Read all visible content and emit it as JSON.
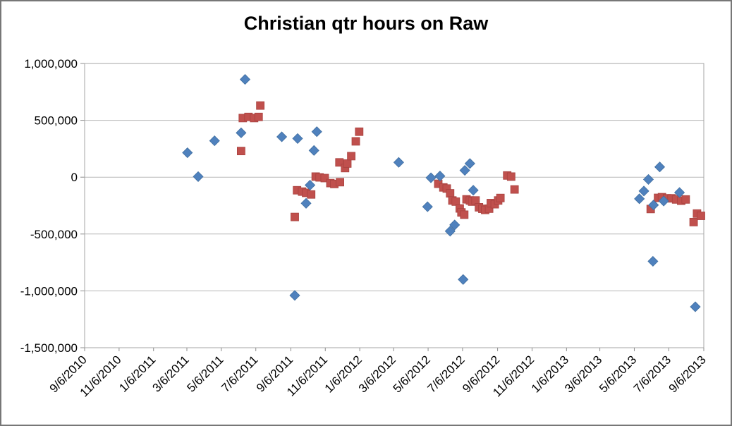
{
  "chart_data": {
    "type": "scatter",
    "title": "Christian qtr hours on Raw",
    "x_axis": {
      "type": "date",
      "start": "9/6/2010",
      "end": "9/6/2013",
      "tick_interval_months": 2,
      "tick_labels": [
        "9/6/2010",
        "11/6/2010",
        "1/6/2011",
        "3/6/2011",
        "5/6/2011",
        "7/6/2011",
        "9/6/2011",
        "11/6/2011",
        "1/6/2012",
        "3/6/2012",
        "5/6/2012",
        "7/6/2012",
        "9/6/2012",
        "11/6/2012",
        "1/6/2013",
        "3/6/2013",
        "5/6/2013",
        "7/6/2013",
        "9/6/2013"
      ]
    },
    "y_axis": {
      "min": -1500000,
      "max": 1000000,
      "tick_step": 500000,
      "ticks": [
        {
          "value": 1000000,
          "label": "1,000,000"
        },
        {
          "value": 500000,
          "label": "500,000"
        },
        {
          "value": 0,
          "label": "0"
        },
        {
          "value": -500000,
          "label": "-500,000"
        },
        {
          "value": -1000000,
          "label": "-1,000,000"
        },
        {
          "value": -1500000,
          "label": "-1,500,000"
        }
      ]
    },
    "grid": "horizontal",
    "legend": "none",
    "series": [
      {
        "marker": "square",
        "color": "#C0504D",
        "points": [
          [
            "6/10/2011",
            230000
          ],
          [
            "6/13/2011",
            520000
          ],
          [
            "6/23/2011",
            530000
          ],
          [
            "7/3/2011",
            520000
          ],
          [
            "7/11/2011",
            530000
          ],
          [
            "7/14/2011",
            630000
          ],
          [
            "9/13/2011",
            -350000
          ],
          [
            "9/17/2011",
            -115000
          ],
          [
            "9/26/2011",
            -127000
          ],
          [
            "10/3/2011",
            -138000
          ],
          [
            "10/12/2011",
            -152000
          ],
          [
            "10/20/2011",
            5000
          ],
          [
            "10/27/2011",
            -2000
          ],
          [
            "11/5/2011",
            -8000
          ],
          [
            "11/15/2011",
            -52000
          ],
          [
            "11/22/2011",
            -60000
          ],
          [
            "12/1/2011",
            130000
          ],
          [
            "12/2/2011",
            -44000
          ],
          [
            "12/11/2011",
            80000
          ],
          [
            "12/15/2011",
            120000
          ],
          [
            "12/22/2011",
            185000
          ],
          [
            "12/30/2011",
            315000
          ],
          [
            "1/5/2012",
            400000
          ],
          [
            "5/24/2012",
            -58000
          ],
          [
            "6/2/2012",
            -90000
          ],
          [
            "6/8/2012",
            -100000
          ],
          [
            "6/14/2012",
            -142000
          ],
          [
            "6/18/2012",
            -205000
          ],
          [
            "6/24/2012",
            -215000
          ],
          [
            "7/1/2012",
            -275000
          ],
          [
            "7/4/2012",
            -310000
          ],
          [
            "7/9/2012",
            -330000
          ],
          [
            "7/13/2012",
            -195000
          ],
          [
            "7/19/2012",
            -205000
          ],
          [
            "7/23/2012",
            -215000
          ],
          [
            "7/29/2012",
            -205000
          ],
          [
            "8/4/2012",
            -265000
          ],
          [
            "8/10/2012",
            -278000
          ],
          [
            "8/15/2012",
            -288000
          ],
          [
            "8/22/2012",
            -277000
          ],
          [
            "8/25/2012",
            -228000
          ],
          [
            "9/1/2012",
            -238000
          ],
          [
            "9/7/2012",
            -205000
          ],
          [
            "9/11/2012",
            -183000
          ],
          [
            "9/23/2012",
            15000
          ],
          [
            "9/30/2012",
            5000
          ],
          [
            "10/6/2012",
            -108000
          ],
          [
            "6/4/2013",
            -280000
          ],
          [
            "6/17/2013",
            -182000
          ],
          [
            "6/24/2013",
            -176000
          ],
          [
            "7/3/2013",
            -186000
          ],
          [
            "7/11/2013",
            -186000
          ],
          [
            "7/19/2013",
            -196000
          ],
          [
            "7/28/2013",
            -207000
          ],
          [
            "8/5/2013",
            -196000
          ],
          [
            "8/19/2013",
            -395000
          ],
          [
            "8/25/2013",
            -320000
          ],
          [
            "9/1/2013",
            -340000
          ]
        ]
      },
      {
        "marker": "diamond",
        "color": "#4F81BD",
        "points": [
          [
            "3/7/2011",
            215000
          ],
          [
            "3/26/2011",
            5000
          ],
          [
            "4/24/2011",
            320000
          ],
          [
            "6/10/2011",
            390000
          ],
          [
            "6/17/2011",
            860000
          ],
          [
            "8/21/2011",
            355000
          ],
          [
            "9/13/2011",
            -1040000
          ],
          [
            "9/18/2011",
            340000
          ],
          [
            "10/3/2011",
            -230000
          ],
          [
            "10/10/2011",
            -70000
          ],
          [
            "10/17/2011",
            235000
          ],
          [
            "10/22/2011",
            400000
          ],
          [
            "3/15/2012",
            130000
          ],
          [
            "5/5/2012",
            -260000
          ],
          [
            "5/11/2012",
            -5000
          ],
          [
            "5/27/2012",
            10000
          ],
          [
            "6/14/2012",
            -475000
          ],
          [
            "6/22/2012",
            -420000
          ],
          [
            "7/7/2012",
            -900000
          ],
          [
            "7/10/2012",
            60000
          ],
          [
            "7/19/2012",
            120000
          ],
          [
            "7/25/2012",
            -115000
          ],
          [
            "5/15/2013",
            -190000
          ],
          [
            "5/23/2013",
            -122000
          ],
          [
            "5/31/2013",
            -20000
          ],
          [
            "6/8/2013",
            -740000
          ],
          [
            "6/9/2013",
            -245000
          ],
          [
            "6/20/2013",
            90000
          ],
          [
            "6/27/2013",
            -210000
          ],
          [
            "7/25/2013",
            -135000
          ],
          [
            "8/22/2013",
            -1140000
          ]
        ]
      }
    ]
  }
}
